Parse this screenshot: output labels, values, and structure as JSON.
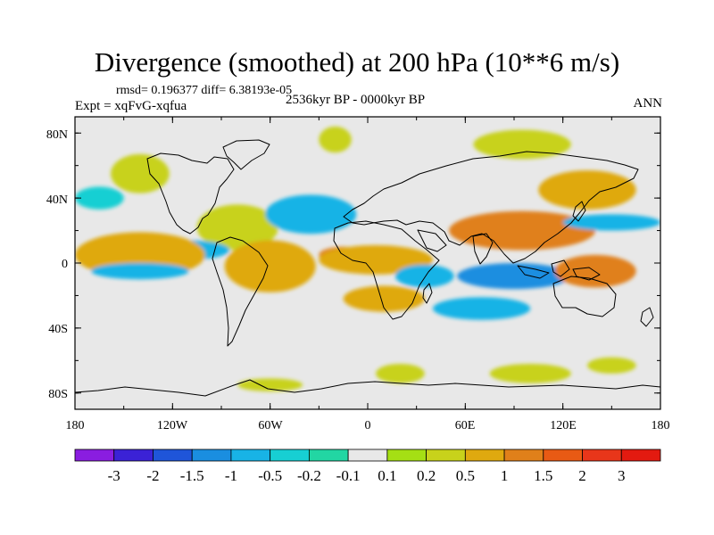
{
  "title": "Divergence (smoothed) at 200 hPa (10**6 m/s)",
  "stats": "rmsd= 0.196377 diff= 6.38193e-05",
  "expt": "Expt = xqFvG-xqfua",
  "period": "2536kyr BP - 0000kyr BP",
  "season": "ANN",
  "chart_data": {
    "type": "filled-contour-map",
    "variable": "Divergence (smoothed) at 200 hPa",
    "units": "10**6 m/s",
    "lon_range": [
      -180,
      180
    ],
    "lat_range": [
      -90,
      90
    ],
    "x_ticks": [
      "180",
      "120W",
      "60W",
      "0",
      "60E",
      "120E",
      "180"
    ],
    "y_ticks": [
      "80N",
      "40N",
      "0",
      "40S",
      "80S"
    ],
    "colorbar": {
      "labels": [
        "-3",
        "-2",
        "-1.5",
        "-1",
        "-0.5",
        "-0.2",
        "-0.1",
        "0.1",
        "0.2",
        "0.5",
        "1",
        "1.5",
        "2",
        "3"
      ],
      "colors": [
        "#8a1de0",
        "#3b22d6",
        "#1f55d9",
        "#1a8ee0",
        "#18b3e6",
        "#17cfd3",
        "#22d6a3",
        "#e8e8e8",
        "#a5df14",
        "#c8d21b",
        "#dfa90f",
        "#e0801a",
        "#e85a14",
        "#e8361a",
        "#e31a10"
      ]
    },
    "regions": [
      {
        "level": "0.2",
        "lon": -20,
        "lat": 76,
        "rx": 10,
        "ry": 8
      },
      {
        "level": "0.2",
        "lon": 95,
        "lat": 73,
        "rx": 30,
        "ry": 9
      },
      {
        "level": "0.2",
        "lon": -140,
        "lat": 55,
        "rx": 18,
        "ry": 12
      },
      {
        "level": "-0.2",
        "lon": -165,
        "lat": 40,
        "rx": 15,
        "ry": 7
      },
      {
        "level": "0.2",
        "lon": -80,
        "lat": 22,
        "rx": 25,
        "ry": 14
      },
      {
        "level": "-0.5",
        "lon": -35,
        "lat": 30,
        "rx": 28,
        "ry": 12
      },
      {
        "level": "-0.5",
        "lon": -110,
        "lat": 8,
        "rx": 25,
        "ry": 6
      },
      {
        "level": "0.5",
        "lon": -140,
        "lat": 5,
        "rx": 40,
        "ry": 14
      },
      {
        "level": "-0.5",
        "lon": -140,
        "lat": -5,
        "rx": 30,
        "ry": 5
      },
      {
        "level": "0.5",
        "lon": -60,
        "lat": -2,
        "rx": 28,
        "ry": 16
      },
      {
        "level": "1",
        "lon": -15,
        "lat": 5,
        "rx": 15,
        "ry": 5
      },
      {
        "level": "0.5",
        "lon": 5,
        "lat": 2,
        "rx": 35,
        "ry": 9
      },
      {
        "level": "-0.5",
        "lon": 35,
        "lat": -8,
        "rx": 18,
        "ry": 7
      },
      {
        "level": "0.5",
        "lon": 10,
        "lat": -22,
        "rx": 25,
        "ry": 8
      },
      {
        "level": "1",
        "lon": 95,
        "lat": 20,
        "rx": 45,
        "ry": 12
      },
      {
        "level": "-0.5",
        "lon": 150,
        "lat": 25,
        "rx": 30,
        "ry": 5
      },
      {
        "level": "-1",
        "lon": 90,
        "lat": -8,
        "rx": 35,
        "ry": 8
      },
      {
        "level": "1",
        "lon": 140,
        "lat": -5,
        "rx": 25,
        "ry": 10
      },
      {
        "level": "0.5",
        "lon": 135,
        "lat": 45,
        "rx": 30,
        "ry": 12
      },
      {
        "level": "-0.5",
        "lon": 70,
        "lat": -28,
        "rx": 30,
        "ry": 7
      },
      {
        "level": "0.2",
        "lon": -60,
        "lat": -75,
        "rx": 20,
        "ry": 4
      },
      {
        "level": "0.2",
        "lon": 20,
        "lat": -68,
        "rx": 15,
        "ry": 6
      },
      {
        "level": "0.2",
        "lon": 100,
        "lat": -68,
        "rx": 25,
        "ry": 6
      },
      {
        "level": "0.2",
        "lon": 150,
        "lat": -63,
        "rx": 15,
        "ry": 5
      }
    ]
  }
}
